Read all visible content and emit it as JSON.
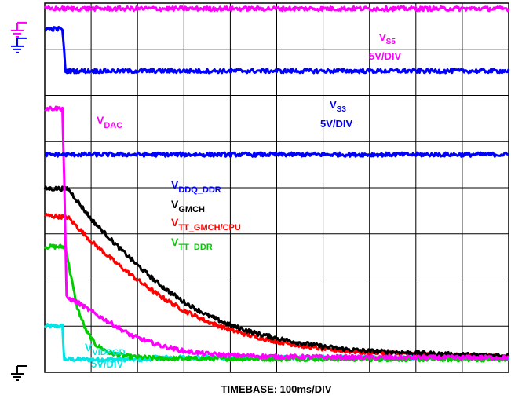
{
  "chart_data": {
    "type": "line",
    "xlabel": "TIMEBASE: 100ms/DIV",
    "grid": true,
    "grid_divisions": {
      "x": 10,
      "y": 8
    },
    "xlim": [
      0,
      10
    ],
    "ylim": [
      0,
      8
    ],
    "units": "divisions",
    "series": [
      {
        "key": "vs5",
        "name": "V",
        "sub": "S5",
        "scale": "5V/DIV",
        "color": "#ff00ff",
        "points": [
          [
            0,
            7.88
          ],
          [
            10,
            7.88
          ]
        ]
      },
      {
        "key": "vs3",
        "name": "V",
        "sub": "S3",
        "scale": "5V/DIV",
        "color": "#0000ff",
        "points": [
          [
            0,
            7.44
          ],
          [
            0.38,
            7.44
          ],
          [
            0.45,
            6.53
          ],
          [
            10,
            6.53
          ]
        ]
      },
      {
        "key": "vddq",
        "name": "V",
        "sub": "DDQ_DDR",
        "color": "#0000ff",
        "points": [
          [
            0,
            4.72
          ],
          [
            10,
            4.72
          ]
        ]
      },
      {
        "key": "vdac",
        "name": "V",
        "sub": "DAC",
        "color": "#ff00ff",
        "points": [
          [
            0,
            5.72
          ],
          [
            0.38,
            5.72
          ],
          [
            0.42,
            4.2
          ],
          [
            0.47,
            1.62
          ],
          [
            0.7,
            1.52
          ],
          [
            1,
            1.32
          ],
          [
            1.4,
            1.08
          ],
          [
            1.9,
            0.78
          ],
          [
            2.5,
            0.58
          ],
          [
            3,
            0.46
          ],
          [
            3.5,
            0.4
          ],
          [
            4,
            0.37
          ],
          [
            5,
            0.34
          ],
          [
            6,
            0.33
          ],
          [
            7,
            0.32
          ],
          [
            8,
            0.32
          ],
          [
            9,
            0.32
          ],
          [
            10,
            0.32
          ]
        ]
      },
      {
        "key": "vgmch",
        "name": "V",
        "sub": "GMCH",
        "color": "#000000",
        "points": [
          [
            0,
            3.98
          ],
          [
            0.5,
            3.98
          ],
          [
            1,
            3.32
          ],
          [
            1.5,
            2.8
          ],
          [
            2,
            2.32
          ],
          [
            2.5,
            1.88
          ],
          [
            3,
            1.52
          ],
          [
            3.5,
            1.24
          ],
          [
            4,
            1.02
          ],
          [
            4.5,
            0.86
          ],
          [
            5,
            0.74
          ],
          [
            5.5,
            0.64
          ],
          [
            6,
            0.56
          ],
          [
            6.5,
            0.5
          ],
          [
            7,
            0.46
          ],
          [
            8,
            0.42
          ],
          [
            9,
            0.38
          ],
          [
            10,
            0.36
          ]
        ]
      },
      {
        "key": "vtt_cpu",
        "name": "V",
        "sub": "TT_GMCH/CPU",
        "color": "#ff0000",
        "points": [
          [
            0,
            3.4
          ],
          [
            0.5,
            3.36
          ],
          [
            1,
            2.84
          ],
          [
            1.5,
            2.4
          ],
          [
            2,
            2
          ],
          [
            2.5,
            1.64
          ],
          [
            3,
            1.34
          ],
          [
            3.5,
            1.1
          ],
          [
            4,
            0.92
          ],
          [
            4.5,
            0.78
          ],
          [
            5,
            0.67
          ],
          [
            5.5,
            0.58
          ],
          [
            6,
            0.51
          ],
          [
            6.5,
            0.46
          ],
          [
            7,
            0.43
          ],
          [
            8,
            0.39
          ],
          [
            9,
            0.36
          ],
          [
            10,
            0.34
          ]
        ]
      },
      {
        "key": "vtt_ddr",
        "name": "V",
        "sub": "TT_DDR",
        "color": "#00cc00",
        "points": [
          [
            0,
            2.72
          ],
          [
            0.45,
            2.72
          ],
          [
            0.55,
            2.15
          ],
          [
            0.7,
            1.4
          ],
          [
            0.9,
            0.88
          ],
          [
            1.1,
            0.6
          ],
          [
            1.4,
            0.42
          ],
          [
            1.8,
            0.34
          ],
          [
            2.5,
            0.3
          ],
          [
            10,
            0.28
          ]
        ]
      },
      {
        "key": "vvidpgd",
        "name": "V",
        "sub": "VIDPGD",
        "scale": "5V/DIV",
        "color": "#00e6e6",
        "points": [
          [
            0,
            1.0
          ],
          [
            0.38,
            1.0
          ],
          [
            0.42,
            0.28
          ],
          [
            2.2,
            0.28
          ],
          [
            2.4,
            0.32
          ],
          [
            10,
            0.32
          ]
        ]
      }
    ],
    "annotations": {
      "vs5_label": {
        "name": "V",
        "sub": "S5",
        "scale": "5V/DIV"
      },
      "vs3_label": {
        "name": "V",
        "sub": "S3",
        "scale": "5V/DIV"
      },
      "vdac_label": {
        "name": "V",
        "sub": "DAC"
      },
      "vddq_label": {
        "name": "V",
        "sub": "DDQ_DDR"
      },
      "vgmch_label": {
        "name": "V",
        "sub": "GMCH"
      },
      "vttcpu_label": {
        "name": "V",
        "sub": "TT_GMCH/CPU"
      },
      "vttddr_label": {
        "name": "V",
        "sub": "TT_DDR"
      },
      "vvid_label": {
        "name": "V",
        "sub": "VIDPGD",
        "scale": "5V/DIV"
      }
    },
    "ground_markers": [
      {
        "name": "ground-marker-magenta",
        "level": 7.44,
        "color": "#ff00ff"
      },
      {
        "name": "ground-marker-blue",
        "level": 7.1,
        "color": "#0000ff"
      },
      {
        "name": "ground-marker-black",
        "level": 0.0,
        "color": "#000000"
      }
    ]
  }
}
